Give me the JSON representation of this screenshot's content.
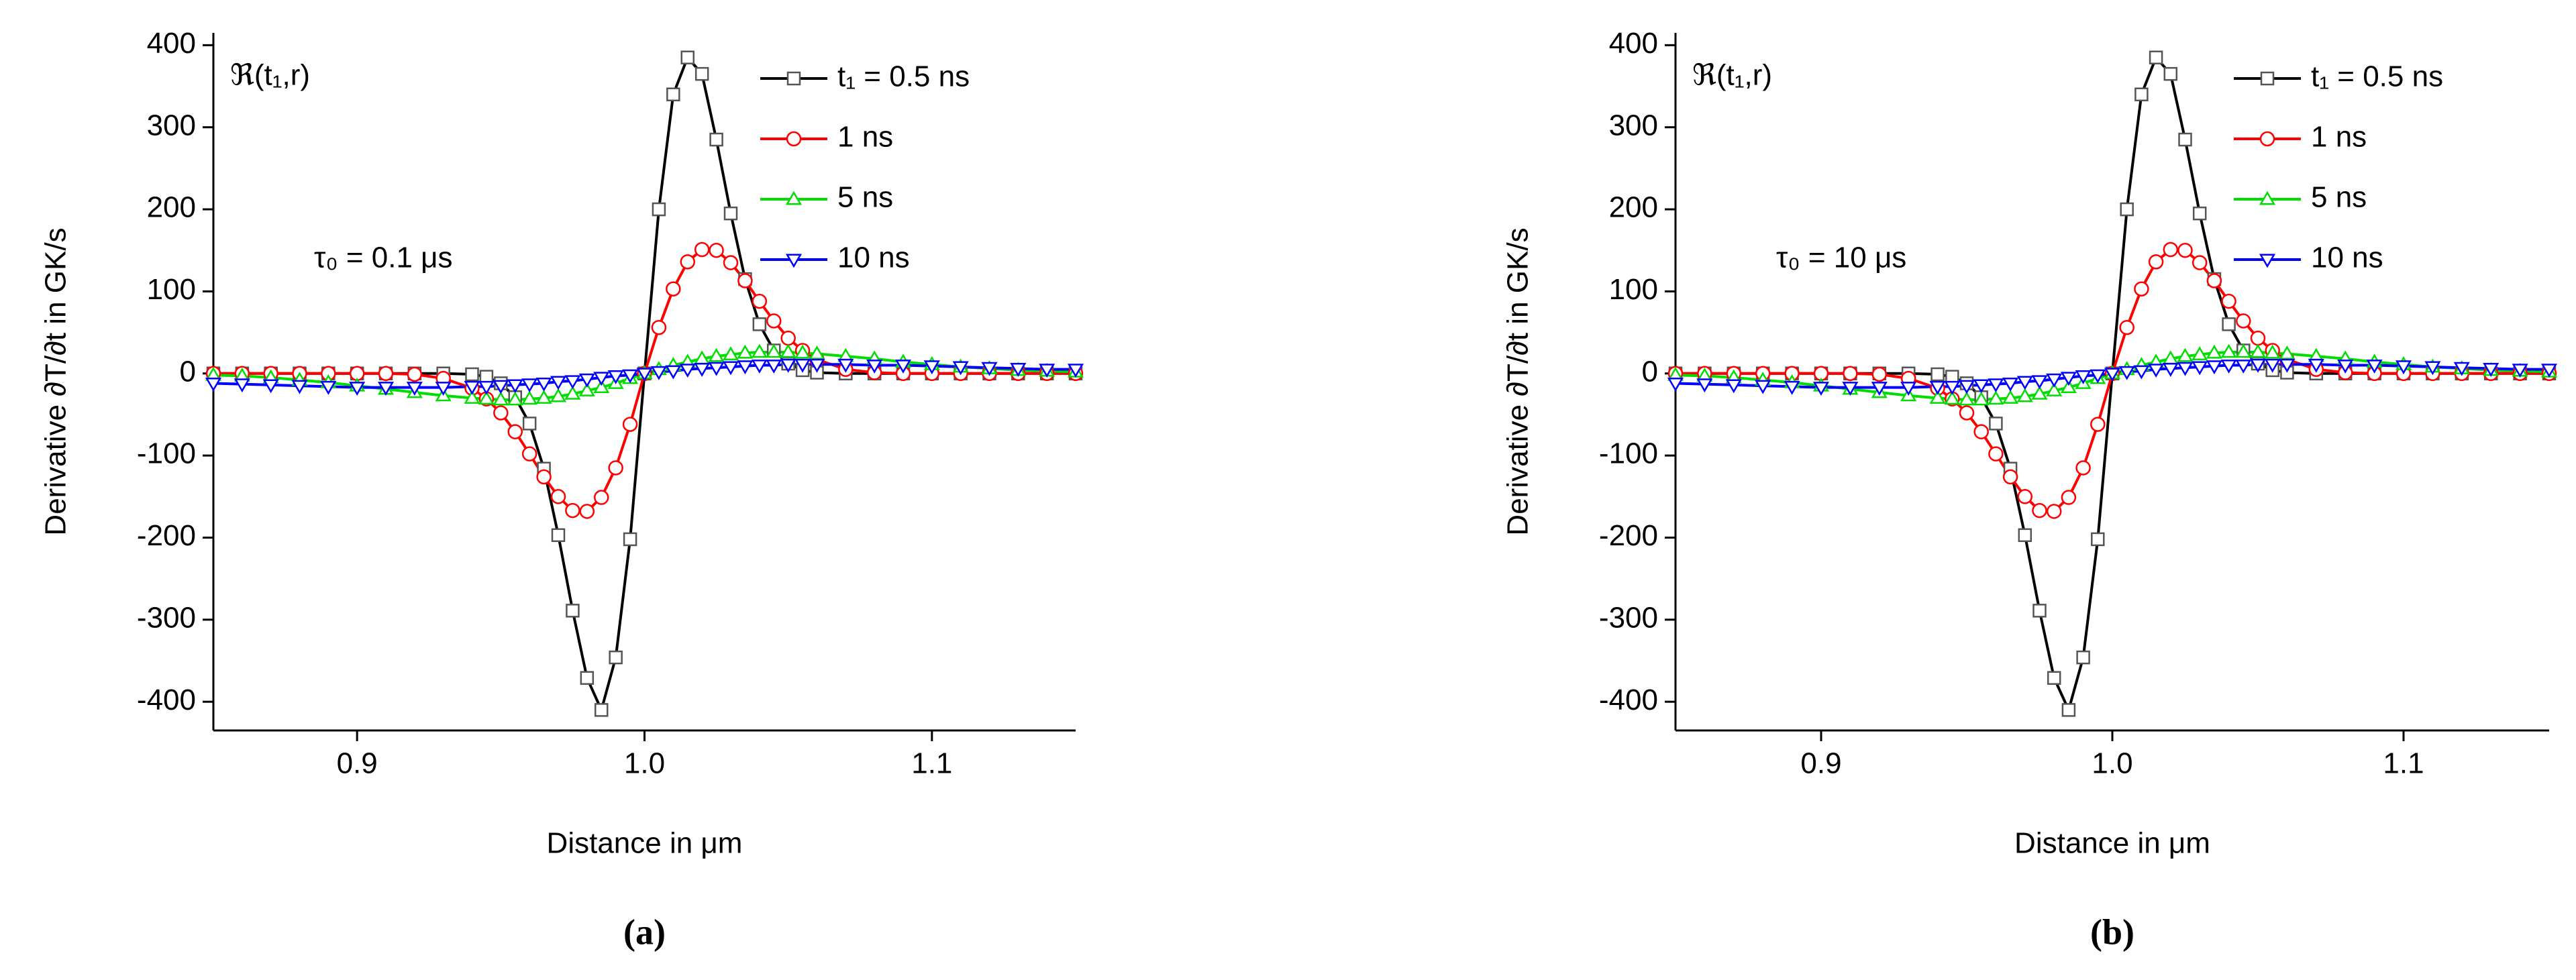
{
  "chart_data": [
    {
      "type": "line",
      "label": "(a)",
      "xlabel": "Distance in μm",
      "ylabel": "Derivative ∂T/∂t in GK/s",
      "annotations": [
        "ℜ(t₁,r)",
        "τ₀ = 0.1 μs"
      ],
      "legend": "upper right",
      "xlim": [
        0.85,
        1.15
      ],
      "ylim": [
        -435,
        415
      ],
      "xticks": [
        0.9,
        {
          "value": 1,
          "label": "1.0"
        },
        1.1
      ],
      "yticks": [
        -400,
        -300,
        -200,
        -100,
        0,
        100,
        200,
        300,
        400
      ],
      "x": [
        0.85,
        0.86,
        0.87,
        0.88,
        0.89,
        0.9,
        0.91,
        0.92,
        0.93,
        0.94,
        0.945,
        0.95,
        0.955,
        0.96,
        0.965,
        0.97,
        0.975,
        0.98,
        0.985,
        0.99,
        0.995,
        1.0,
        1.005,
        1.01,
        1.015,
        1.02,
        1.025,
        1.03,
        1.035,
        1.04,
        1.045,
        1.05,
        1.055,
        1.06,
        1.07,
        1.08,
        1.09,
        1.1,
        1.11,
        1.12,
        1.13,
        1.14,
        1.15
      ],
      "series": [
        {
          "name": "t₁ = 0.5 ns",
          "color": "#000000",
          "marker": "square",
          "values": [
            0,
            0,
            0,
            0,
            0,
            0,
            0,
            0,
            0,
            -1,
            -4,
            -12,
            -29,
            -61,
            -116,
            -197,
            -289,
            -371,
            -410,
            -346,
            -202,
            0,
            200,
            340,
            385,
            365,
            285,
            195,
            115,
            60,
            28,
            12,
            4,
            1,
            0,
            0,
            0,
            0,
            0,
            0,
            0,
            0,
            0
          ]
        },
        {
          "name": "1 ns",
          "color": "#ff0000",
          "marker": "circle",
          "values": [
            0,
            0,
            0,
            0,
            0,
            0,
            0,
            -1,
            -6,
            -18,
            -31,
            -48,
            -71,
            -98,
            -126,
            -150,
            -167,
            -168,
            -151,
            -115,
            -62,
            0,
            56,
            103,
            136,
            151,
            150,
            135,
            113,
            88,
            64,
            43,
            28,
            17,
            5,
            1,
            0,
            0,
            0,
            0,
            0,
            0,
            0
          ]
        },
        {
          "name": "5 ns",
          "color": "#00dd00",
          "marker": "triangle",
          "values": [
            -2,
            -3,
            -5,
            -8,
            -11,
            -15,
            -19,
            -23,
            -27,
            -30,
            -31,
            -32,
            -32,
            -31,
            -30,
            -28,
            -25,
            -21,
            -17,
            -12,
            -6,
            0,
            5,
            10,
            14,
            18,
            21,
            23,
            25,
            26,
            26,
            26,
            25,
            24,
            21,
            18,
            14,
            11,
            8,
            6,
            4,
            3,
            2
          ]
        },
        {
          "name": "10 ns",
          "color": "#0000ff",
          "marker": "down-triangle",
          "values": [
            -12,
            -13,
            -14,
            -15,
            -16,
            -17,
            -17,
            -17,
            -17,
            -16,
            -16,
            -15,
            -14,
            -13,
            -12,
            -10,
            -9,
            -7,
            -5,
            -3,
            -2,
            0,
            2,
            3,
            5,
            6,
            7,
            8,
            9,
            10,
            10,
            11,
            11,
            11,
            11,
            10,
            10,
            9,
            8,
            7,
            6,
            5,
            5
          ]
        }
      ]
    },
    {
      "type": "line",
      "label": "(b)",
      "xlabel": "Distance in μm",
      "ylabel": "Derivative ∂T/∂t in GK/s",
      "annotations": [
        "ℜ(t₁,r)",
        "τ₀ = 10 μs"
      ],
      "legend": "upper right",
      "xlim": [
        0.85,
        1.15
      ],
      "ylim": [
        -435,
        415
      ],
      "xticks": [
        0.9,
        {
          "value": 1,
          "label": "1.0"
        },
        1.1
      ],
      "yticks": [
        -400,
        -300,
        -200,
        -100,
        0,
        100,
        200,
        300,
        400
      ],
      "x": [
        0.85,
        0.86,
        0.87,
        0.88,
        0.89,
        0.9,
        0.91,
        0.92,
        0.93,
        0.94,
        0.945,
        0.95,
        0.955,
        0.96,
        0.965,
        0.97,
        0.975,
        0.98,
        0.985,
        0.99,
        0.995,
        1.0,
        1.005,
        1.01,
        1.015,
        1.02,
        1.025,
        1.03,
        1.035,
        1.04,
        1.045,
        1.05,
        1.055,
        1.06,
        1.07,
        1.08,
        1.09,
        1.1,
        1.11,
        1.12,
        1.13,
        1.14,
        1.15
      ],
      "series": [
        {
          "name": "t₁ = 0.5 ns",
          "color": "#000000",
          "marker": "square",
          "values": [
            0,
            0,
            0,
            0,
            0,
            0,
            0,
            0,
            0,
            -1,
            -4,
            -12,
            -29,
            -61,
            -116,
            -197,
            -289,
            -371,
            -410,
            -346,
            -202,
            0,
            200,
            340,
            385,
            365,
            285,
            195,
            115,
            60,
            28,
            12,
            4,
            1,
            0,
            0,
            0,
            0,
            0,
            0,
            0,
            0,
            0
          ]
        },
        {
          "name": "1 ns",
          "color": "#ff0000",
          "marker": "circle",
          "values": [
            0,
            0,
            0,
            0,
            0,
            0,
            0,
            -1,
            -6,
            -18,
            -31,
            -48,
            -71,
            -98,
            -126,
            -150,
            -167,
            -168,
            -151,
            -115,
            -62,
            0,
            56,
            103,
            136,
            151,
            150,
            135,
            113,
            88,
            64,
            43,
            28,
            17,
            5,
            1,
            0,
            0,
            0,
            0,
            0,
            0,
            0
          ]
        },
        {
          "name": "5 ns",
          "color": "#00dd00",
          "marker": "triangle",
          "values": [
            -2,
            -3,
            -5,
            -8,
            -11,
            -15,
            -19,
            -23,
            -27,
            -30,
            -31,
            -32,
            -32,
            -31,
            -30,
            -28,
            -25,
            -21,
            -17,
            -12,
            -6,
            0,
            5,
            10,
            14,
            18,
            21,
            23,
            25,
            26,
            26,
            26,
            25,
            24,
            21,
            18,
            14,
            11,
            8,
            6,
            4,
            3,
            2
          ]
        },
        {
          "name": "10 ns",
          "color": "#0000ff",
          "marker": "down-triangle",
          "values": [
            -12,
            -13,
            -14,
            -15,
            -16,
            -17,
            -17,
            -17,
            -17,
            -16,
            -16,
            -15,
            -14,
            -13,
            -12,
            -10,
            -9,
            -7,
            -5,
            -3,
            -2,
            0,
            2,
            3,
            5,
            6,
            7,
            8,
            9,
            10,
            10,
            11,
            11,
            11,
            11,
            10,
            10,
            9,
            8,
            7,
            6,
            5,
            5
          ]
        }
      ]
    }
  ]
}
